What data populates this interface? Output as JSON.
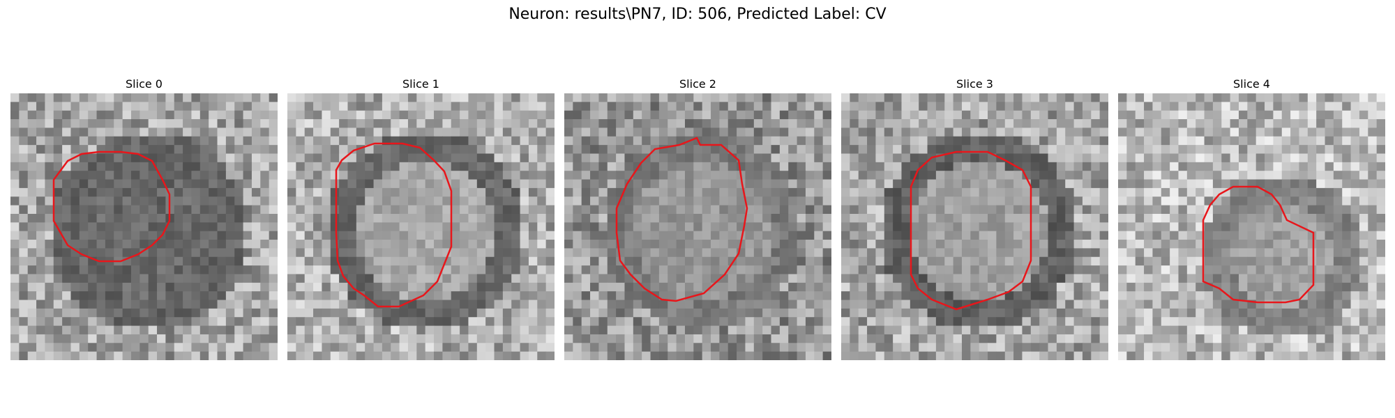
{
  "figure": {
    "title": "Neuron: results\\PN7, ID: 506, Predicted Label: CV"
  },
  "panels": [
    {
      "title": "Slice 0",
      "seed": 11,
      "base": 165,
      "ring_dark": 60,
      "center_dark": 55,
      "contour_color": "#e8161b"
    },
    {
      "title": "Slice 1",
      "seed": 23,
      "base": 175,
      "ring_dark": 55,
      "center_dark": 160,
      "contour_color": "#e8161b"
    },
    {
      "title": "Slice 2",
      "seed": 37,
      "base": 150,
      "ring_dark": 105,
      "center_dark": 150,
      "contour_color": "#e8161b"
    },
    {
      "title": "Slice 3",
      "seed": 41,
      "base": 165,
      "ring_dark": 50,
      "center_dark": 155,
      "contour_color": "#e8161b"
    },
    {
      "title": "Slice 4",
      "seed": 53,
      "base": 185,
      "ring_dark": 95,
      "center_dark": 140,
      "contour_color": "#e8161b"
    }
  ]
}
